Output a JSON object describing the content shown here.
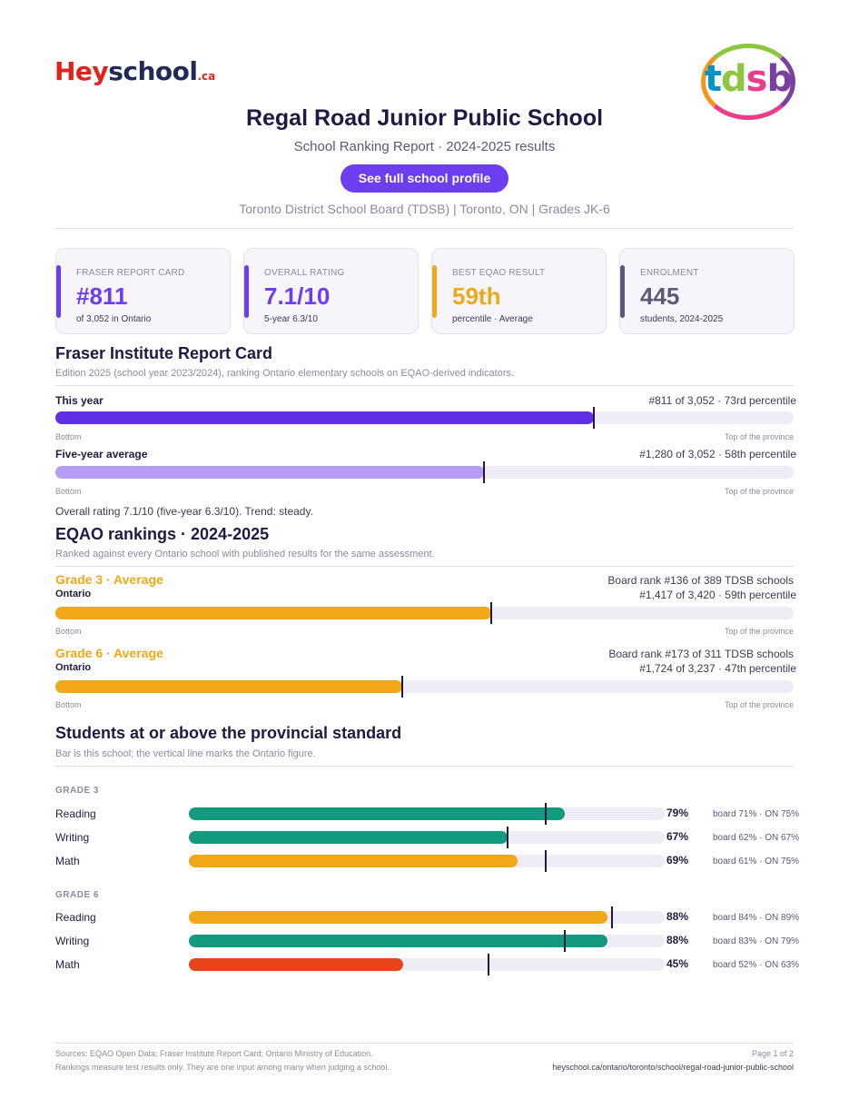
{
  "brand": {
    "hey": "Hey",
    "school": "school",
    "ca": ".ca"
  },
  "board_logo": {
    "t": "t",
    "d": "d",
    "s": "s",
    "b": "b"
  },
  "header": {
    "title": "Regal Road Junior Public School",
    "subtitle": "School Ranking Report  ·  2024-2025 results",
    "button_label": "See full school profile",
    "meta": "Toronto District School Board (TDSB)  |  Toronto, ON  |  Grades JK-6"
  },
  "cards": [
    {
      "label": "FRASER REPORT CARD",
      "value": "#811",
      "sub": "of 3,052 in Ontario",
      "color": "#6c3ef0"
    },
    {
      "label": "OVERALL RATING",
      "value": "7.1/10",
      "sub": "5-year 6.3/10",
      "color": "#6c3ef0"
    },
    {
      "label": "BEST EQAO RESULT",
      "value": "59th",
      "sub": "percentile  ·  Average",
      "color": "#f0a818"
    },
    {
      "label": "ENROLMENT",
      "value": "445",
      "sub": "students, 2024-2025",
      "color": "#5e5878"
    }
  ],
  "fraser": {
    "title": "Fraser Institute Report Card",
    "desc": "Edition 2025 (school year 2023/2024), ranking Ontario elementary schools on EQAO-derived indicators.",
    "bars": [
      {
        "label": "This year",
        "right": "#811 of 3,052  ·  73rd percentile",
        "percentile": 73,
        "color": "#5f30e6"
      },
      {
        "label": "Five-year average",
        "right": "#1,280 of 3,052  ·  58th percentile",
        "percentile": 58,
        "color": "#b59cf6"
      }
    ],
    "scale_left": "Bottom",
    "scale_right": "Top of the province",
    "note": "Overall rating 7.1/10 (five-year 6.3/10). Trend: steady."
  },
  "eqao": {
    "title": "EQAO rankings  ·  2024-2025",
    "desc": "Ranked against every Ontario school with published results for the same assessment.",
    "grades": [
      {
        "head": "Grade 3  ·  Average",
        "sub": "Ontario",
        "board_rank": "Board rank #136 of 389 TDSB schools",
        "rank": "#1,417 of 3,420  ·  59th percentile",
        "percentile": 59,
        "color": "#f0a818"
      },
      {
        "head": "Grade 6  ·  Average",
        "sub": "Ontario",
        "board_rank": "Board rank #173 of 311 TDSB schools",
        "rank": "#1,724 of 3,237  ·  47th percentile",
        "percentile": 47,
        "color": "#f0a818"
      }
    ],
    "scale_left": "Bottom",
    "scale_right": "Top of the province"
  },
  "standards": {
    "title": "Students at or above the provincial standard",
    "desc": "Bar is this school; the vertical line marks the Ontario figure.",
    "groups": [
      {
        "name": "GRADE 3",
        "rows": [
          {
            "subject": "Reading",
            "pct": 79,
            "pct_label": "79%",
            "ontario": 75,
            "compare": "board 71%  ·  ON 75%",
            "color": "#149a7e"
          },
          {
            "subject": "Writing",
            "pct": 67,
            "pct_label": "67%",
            "ontario": 67,
            "compare": "board 62%  ·  ON 67%",
            "color": "#149a7e"
          },
          {
            "subject": "Math",
            "pct": 69,
            "pct_label": "69%",
            "ontario": 75,
            "compare": "board 61%  ·  ON 75%",
            "color": "#f0a818"
          }
        ]
      },
      {
        "name": "GRADE 6",
        "rows": [
          {
            "subject": "Reading",
            "pct": 88,
            "pct_label": "88%",
            "ontario": 89,
            "compare": "board 84%  ·  ON 89%",
            "color": "#f0a818"
          },
          {
            "subject": "Writing",
            "pct": 88,
            "pct_label": "88%",
            "ontario": 79,
            "compare": "board 83%  ·  ON 79%",
            "color": "#149a7e"
          },
          {
            "subject": "Math",
            "pct": 45,
            "pct_label": "45%",
            "ontario": 63,
            "compare": "board 52%  ·  ON 63%",
            "color": "#e8441a"
          }
        ]
      }
    ]
  },
  "footer": {
    "sources": "Sources: EQAO Open Data; Fraser Institute Report Card; Ontario Ministry of Education.",
    "disclaimer": "Rankings measure test results only. They are one input among many when judging a school.",
    "page": "Page 1 of 2",
    "url": "heyschool.ca/ontario/toronto/school/regal-road-junior-public-school"
  }
}
